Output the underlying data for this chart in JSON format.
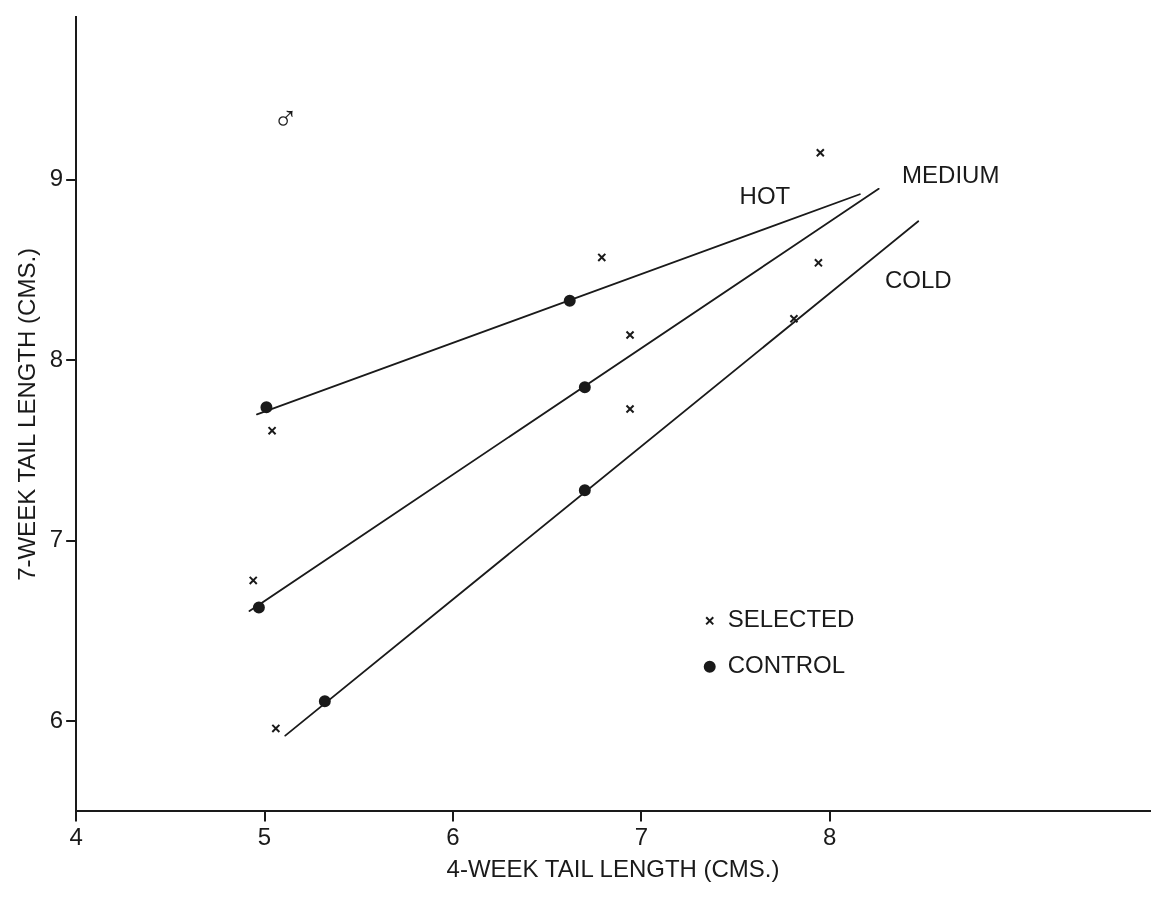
{
  "chart_data": {
    "type": "scatter",
    "xlabel": "4-WEEK TAIL LENGTH (CMS.)",
    "ylabel": "7-WEEK TAIL LENGTH (CMS.)",
    "xlim": [
      4,
      9.7
    ],
    "xticks": [
      4,
      5,
      6,
      7,
      8
    ],
    "ylim": [
      5.5,
      9.9
    ],
    "yticks": [
      6,
      7,
      8,
      9
    ],
    "grid": false,
    "legend": "bottom right",
    "series": [
      {
        "name": "SELECTED",
        "marker": "cross",
        "color": "#1a1a1a",
        "x": [
          5.04,
          4.94,
          5.06,
          6.79,
          6.94,
          6.94,
          7.95,
          7.94,
          7.81
        ],
        "values": [
          7.61,
          6.78,
          5.96,
          8.57,
          8.14,
          7.73,
          9.15,
          8.54,
          8.23
        ]
      },
      {
        "name": "CONTROL",
        "marker": "circle",
        "color": "#1a1a1a",
        "x": [
          5.01,
          6.62,
          6.7,
          6.7,
          4.97,
          5.32
        ],
        "values": [
          7.74,
          8.33,
          7.85,
          7.28,
          6.63,
          6.11
        ]
      },
      {
        "name": "HOT",
        "type": "line",
        "marker": "none",
        "color": "#1a1a1a",
        "x": [
          4.96,
          8.16
        ],
        "values": [
          7.7,
          8.92
        ]
      },
      {
        "name": "MEDIUM",
        "type": "line",
        "marker": "none",
        "color": "#1a1a1a",
        "x": [
          4.92,
          8.26
        ],
        "values": [
          6.61,
          8.95
        ]
      },
      {
        "name": "COLD",
        "type": "line",
        "marker": "none",
        "color": "#1a1a1a",
        "x": [
          5.11,
          8.47
        ],
        "values": [
          5.92,
          8.77
        ]
      }
    ],
    "annotations": [
      "♂"
    ]
  }
}
